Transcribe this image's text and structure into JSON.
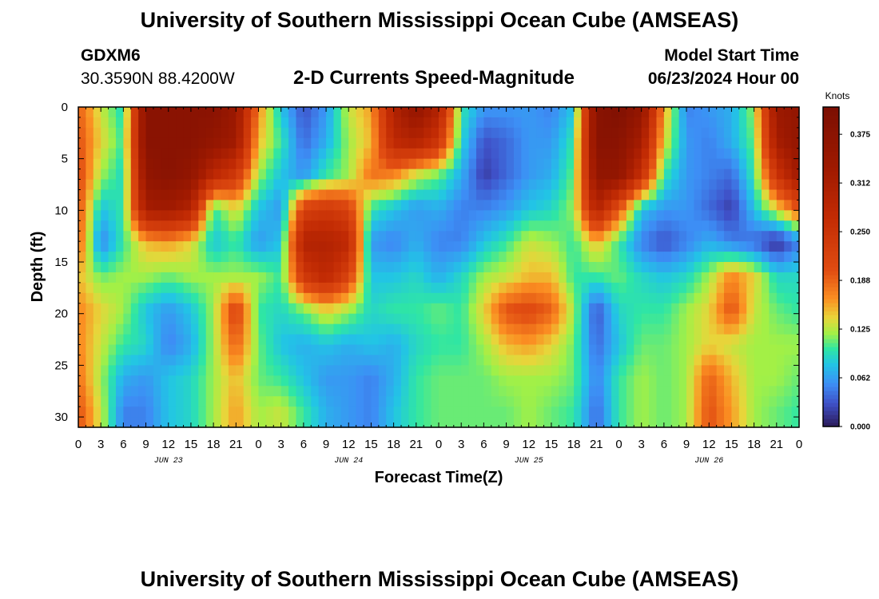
{
  "header": {
    "title": "University of Southern Mississippi Ocean Cube (AMSEAS)",
    "station": "GDXM6",
    "coords": "30.3590N  88.4200W",
    "subtitle": "2-D Currents Speed-Magnitude",
    "model_label": "Model Start Time",
    "model_time": "06/23/2024 Hour 00"
  },
  "footer": {
    "title": "University of Southern Mississippi Ocean Cube (AMSEAS)"
  },
  "chart_data": {
    "type": "heatmap",
    "title": "2-D Currents Speed-Magnitude",
    "xlabel": "Forecast Time(Z)",
    "ylabel": "Depth (ft)",
    "x_tick_labels": [
      "0",
      "3",
      "6",
      "9",
      "12",
      "15",
      "18",
      "21",
      "0",
      "3",
      "6",
      "9",
      "12",
      "15",
      "18",
      "21",
      "0",
      "3",
      "6",
      "9",
      "12",
      "15",
      "18",
      "21",
      "0",
      "3",
      "6",
      "9",
      "12",
      "15",
      "18",
      "21",
      "0"
    ],
    "day_labels": [
      "JUN 23",
      "JUN 24",
      "JUN 25",
      "JUN 26"
    ],
    "xlim_hours": [
      0,
      96
    ],
    "y_ticks": [
      0,
      5,
      10,
      15,
      20,
      25,
      30
    ],
    "ylim_ft": [
      0,
      31
    ],
    "colorbar": {
      "label": "Knots",
      "ticks": [
        "0.000",
        "0.062",
        "0.125",
        "0.188",
        "0.250",
        "0.312",
        "0.375"
      ],
      "tick_values": [
        0,
        0.0625,
        0.125,
        0.1875,
        0.25,
        0.3125,
        0.375
      ],
      "range": [
        0,
        0.41
      ],
      "stops": [
        {
          "v": 0.0,
          "c": "#2b1a57"
        },
        {
          "v": 0.03,
          "c": "#3f51c8"
        },
        {
          "v": 0.055,
          "c": "#3d8ef5"
        },
        {
          "v": 0.08,
          "c": "#22c4e6"
        },
        {
          "v": 0.1,
          "c": "#2fe6a4"
        },
        {
          "v": 0.12,
          "c": "#a3f046"
        },
        {
          "v": 0.14,
          "c": "#e8d53a"
        },
        {
          "v": 0.165,
          "c": "#fb8e22"
        },
        {
          "v": 0.2,
          "c": "#e14d12"
        },
        {
          "v": 0.27,
          "c": "#c22b04"
        },
        {
          "v": 0.33,
          "c": "#a01a01"
        },
        {
          "v": 0.41,
          "c": "#7c0f02"
        }
      ]
    },
    "depth_levels_ft": [
      0,
      3.3,
      6.6,
      9.8,
      13.1,
      16.4,
      19.7,
      23,
      26.2,
      29.5
    ],
    "time_hours": [
      0,
      3,
      6,
      9,
      12,
      15,
      18,
      21,
      24,
      27,
      30,
      33,
      36,
      39,
      42,
      45,
      48,
      51,
      54,
      57,
      60,
      63,
      66,
      69,
      72,
      75,
      78,
      81,
      84,
      87,
      90,
      93,
      96
    ],
    "speed_knots": [
      [
        0.19,
        0.13,
        0.09,
        0.38,
        0.38,
        0.38,
        0.38,
        0.34,
        0.17,
        0.08,
        0.03,
        0.06,
        0.13,
        0.16,
        0.3,
        0.36,
        0.3,
        0.1,
        0.06,
        0.06,
        0.06,
        0.05,
        0.08,
        0.38,
        0.4,
        0.36,
        0.16,
        0.05,
        0.06,
        0.07,
        0.12,
        0.34,
        0.36
      ],
      [
        0.2,
        0.14,
        0.1,
        0.38,
        0.38,
        0.38,
        0.36,
        0.33,
        0.15,
        0.1,
        0.04,
        0.07,
        0.12,
        0.15,
        0.28,
        0.3,
        0.25,
        0.09,
        0.03,
        0.04,
        0.06,
        0.06,
        0.1,
        0.38,
        0.38,
        0.32,
        0.14,
        0.06,
        0.05,
        0.07,
        0.11,
        0.32,
        0.36
      ],
      [
        0.21,
        0.12,
        0.09,
        0.36,
        0.38,
        0.36,
        0.28,
        0.24,
        0.12,
        0.08,
        0.06,
        0.1,
        0.12,
        0.18,
        0.17,
        0.13,
        0.11,
        0.07,
        0.02,
        0.04,
        0.06,
        0.07,
        0.11,
        0.36,
        0.36,
        0.26,
        0.1,
        0.06,
        0.05,
        0.04,
        0.1,
        0.25,
        0.33
      ],
      [
        0.2,
        0.08,
        0.1,
        0.32,
        0.33,
        0.3,
        0.1,
        0.14,
        0.08,
        0.06,
        0.22,
        0.24,
        0.22,
        0.1,
        0.08,
        0.06,
        0.07,
        0.05,
        0.05,
        0.06,
        0.08,
        0.09,
        0.12,
        0.3,
        0.2,
        0.08,
        0.06,
        0.06,
        0.04,
        0.02,
        0.08,
        0.14,
        0.2
      ],
      [
        0.19,
        0.05,
        0.1,
        0.15,
        0.16,
        0.14,
        0.08,
        0.1,
        0.06,
        0.08,
        0.3,
        0.3,
        0.28,
        0.06,
        0.05,
        0.07,
        0.05,
        0.05,
        0.08,
        0.1,
        0.13,
        0.12,
        0.1,
        0.15,
        0.1,
        0.05,
        0.03,
        0.05,
        0.07,
        0.05,
        0.04,
        0.01,
        0.05
      ],
      [
        0.15,
        0.11,
        0.12,
        0.12,
        0.11,
        0.12,
        0.12,
        0.12,
        0.12,
        0.1,
        0.24,
        0.28,
        0.22,
        0.08,
        0.08,
        0.09,
        0.07,
        0.09,
        0.12,
        0.13,
        0.15,
        0.15,
        0.1,
        0.1,
        0.11,
        0.09,
        0.08,
        0.09,
        0.12,
        0.17,
        0.14,
        0.09,
        0.09
      ],
      [
        0.17,
        0.14,
        0.12,
        0.08,
        0.06,
        0.08,
        0.12,
        0.22,
        0.1,
        0.09,
        0.11,
        0.14,
        0.12,
        0.09,
        0.1,
        0.1,
        0.11,
        0.1,
        0.14,
        0.2,
        0.21,
        0.19,
        0.12,
        0.03,
        0.09,
        0.1,
        0.1,
        0.12,
        0.14,
        0.2,
        0.13,
        0.11,
        0.1
      ],
      [
        0.17,
        0.13,
        0.1,
        0.09,
        0.05,
        0.07,
        0.12,
        0.19,
        0.11,
        0.08,
        0.07,
        0.08,
        0.07,
        0.08,
        0.07,
        0.09,
        0.1,
        0.1,
        0.12,
        0.15,
        0.16,
        0.14,
        0.11,
        0.04,
        0.08,
        0.11,
        0.11,
        0.12,
        0.14,
        0.13,
        0.12,
        0.12,
        0.12
      ],
      [
        0.18,
        0.12,
        0.07,
        0.06,
        0.08,
        0.09,
        0.12,
        0.15,
        0.11,
        0.1,
        0.08,
        0.06,
        0.06,
        0.05,
        0.07,
        0.1,
        0.11,
        0.11,
        0.11,
        0.12,
        0.12,
        0.12,
        0.11,
        0.05,
        0.1,
        0.12,
        0.11,
        0.12,
        0.19,
        0.15,
        0.12,
        0.12,
        0.11
      ],
      [
        0.2,
        0.13,
        0.05,
        0.05,
        0.08,
        0.09,
        0.12,
        0.16,
        0.12,
        0.13,
        0.1,
        0.07,
        0.06,
        0.05,
        0.08,
        0.1,
        0.11,
        0.11,
        0.11,
        0.11,
        0.12,
        0.11,
        0.1,
        0.04,
        0.1,
        0.12,
        0.11,
        0.12,
        0.2,
        0.16,
        0.12,
        0.11,
        0.1
      ]
    ]
  }
}
